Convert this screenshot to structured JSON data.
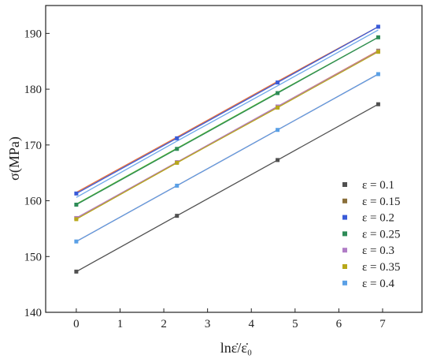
{
  "chart_data": {
    "type": "line",
    "xlabel": "lnε̇/ε̇₀",
    "ylabel": "σ(MPa)",
    "xlim": [
      -0.7,
      7.9
    ],
    "ylim": [
      140,
      195
    ],
    "xticks": [
      0,
      1,
      2,
      3,
      4,
      5,
      6,
      7
    ],
    "yticks": [
      140,
      150,
      160,
      170,
      180,
      190
    ],
    "legend_position": "bottom-right",
    "grid": false,
    "x": [
      0,
      2.3,
      4.6,
      6.9
    ],
    "series": [
      {
        "name": "ε = 0.1",
        "color": "#505050",
        "values": [
          147.3,
          157.3,
          167.3,
          177.3
        ]
      },
      {
        "name": "ε = 0.15",
        "color": "#e8703a",
        "marker_color": "#8a6f3a",
        "values": [
          156.9,
          166.9,
          176.9,
          186.9
        ]
      },
      {
        "name": "ε = 0.2",
        "color": "#3a5bd8",
        "values": [
          161.3,
          171.2,
          181.2,
          191.2
        ]
      },
      {
        "name": "ε = 0.25",
        "color": "#2e8b57",
        "values": [
          159.3,
          169.3,
          179.3,
          189.3
        ]
      },
      {
        "name": "ε = 0.3",
        "color": "#b07cc6",
        "values": [
          156.9,
          166.9,
          176.9,
          186.8
        ]
      },
      {
        "name": "ε = 0.35",
        "color": "#b8a81a",
        "values": [
          156.7,
          166.8,
          176.7,
          186.7
        ]
      },
      {
        "name": "ε = 0.4",
        "color": "#5aa0e6",
        "values": [
          152.7,
          162.7,
          172.7,
          182.7
        ]
      }
    ],
    "extra_lines": [
      {
        "color": "#e8703a",
        "values": [
          161.5,
          171.4,
          181.4,
          191.2
        ]
      },
      {
        "color": "#6fa8e8",
        "values": [
          160.6,
          170.7,
          180.6,
          190.6
        ]
      },
      {
        "color": "#5cbf2a",
        "values": [
          159.4,
          169.4,
          179.4,
          189.3
        ]
      },
      {
        "color": "#ff4d4d",
        "values": [
          152.7,
          162.7,
          172.7,
          182.7
        ]
      }
    ]
  }
}
